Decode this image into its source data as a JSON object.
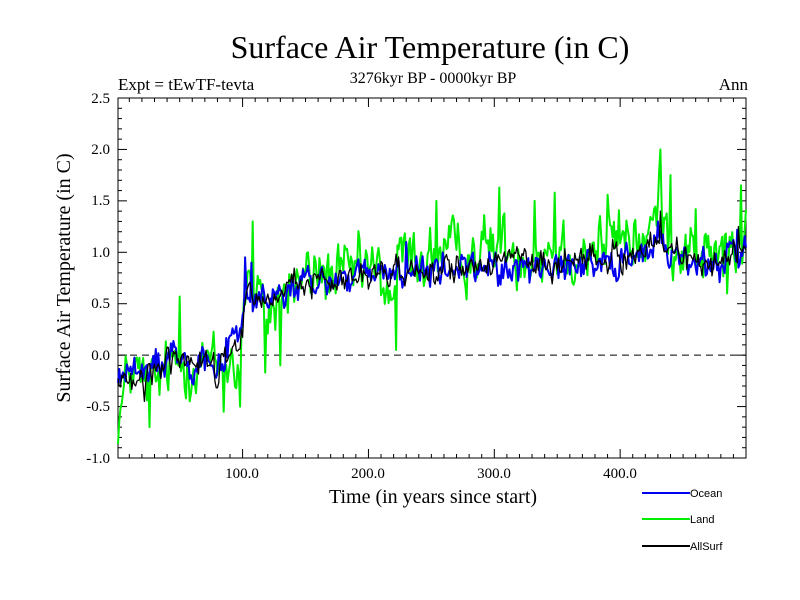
{
  "header": {
    "title": "Surface Air Temperature (in C)",
    "subtitle": "3276kyr BP - 0000kyr BP",
    "experiment": "Expt = tEwTF-tevta",
    "period": "Ann"
  },
  "chart_data": {
    "type": "line",
    "title": "Surface Air Temperature (in C)",
    "subtitle": "3276kyr BP - 0000kyr BP",
    "xlabel": "Time (in years since start)",
    "ylabel": "Surface Air Temperature (in C)",
    "xlim": [
      1,
      500
    ],
    "ylim": [
      -1.0,
      2.5
    ],
    "x_ticks": [
      100,
      200,
      300,
      400
    ],
    "x_tick_labels": [
      "100.0",
      "200.0",
      "300.0",
      "400.0"
    ],
    "y_ticks": [
      -1.0,
      -0.5,
      0.0,
      0.5,
      1.0,
      1.5,
      2.0,
      2.5
    ],
    "y_tick_labels": [
      "-1.0",
      "-0.5",
      "0.0",
      "0.5",
      "1.0",
      "1.5",
      "2.0",
      "2.5"
    ],
    "zero_line": {
      "value": 0.0,
      "style": "dashed"
    },
    "legend_placement": "bottom-right",
    "series": [
      {
        "name": "Land",
        "color": "#00ee00",
        "anchors_x": [
          1,
          5,
          10,
          20,
          30,
          40,
          50,
          60,
          70,
          80,
          90,
          95,
          100,
          103,
          108,
          115,
          120,
          140,
          160,
          180,
          200,
          210,
          218,
          225,
          250,
          280,
          300,
          330,
          350,
          370,
          400,
          420,
          432,
          440,
          460,
          480,
          490,
          500
        ],
        "anchors_y": [
          -0.6,
          -0.45,
          -0.1,
          -0.25,
          -0.3,
          -0.15,
          -0.1,
          -0.05,
          -0.05,
          -0.15,
          0.0,
          -0.2,
          0.3,
          0.75,
          0.6,
          0.45,
          0.4,
          0.7,
          0.8,
          0.75,
          0.85,
          0.75,
          0.55,
          0.95,
          0.95,
          1.0,
          1.05,
          1.0,
          1.05,
          1.0,
          1.15,
          1.1,
          1.45,
          1.1,
          1.0,
          0.95,
          1.05,
          1.05
        ],
        "noise": 0.26,
        "spikes": [
          [
            26,
            -0.7
          ],
          [
            50,
            0.57
          ],
          [
            85,
            -0.55
          ],
          [
            98,
            -0.5
          ],
          [
            108,
            1.3
          ],
          [
            118,
            -0.17
          ],
          [
            130,
            -0.1
          ],
          [
            222,
            0.05
          ],
          [
            254,
            1.5
          ],
          [
            304,
            1.63
          ],
          [
            332,
            1.5
          ],
          [
            348,
            1.58
          ],
          [
            390,
            1.56
          ],
          [
            432,
            2.0
          ],
          [
            440,
            1.75
          ],
          [
            460,
            1.42
          ],
          [
            485,
            0.6
          ],
          [
            496,
            1.65
          ]
        ]
      },
      {
        "name": "Ocean",
        "color": "#0000ee",
        "anchors_x": [
          1,
          10,
          20,
          30,
          40,
          50,
          60,
          70,
          80,
          90,
          95,
          100,
          103,
          108,
          115,
          120,
          140,
          160,
          180,
          200,
          220,
          250,
          280,
          300,
          330,
          350,
          370,
          400,
          420,
          432,
          440,
          460,
          480,
          490,
          500
        ],
        "anchors_y": [
          -0.25,
          -0.1,
          -0.25,
          -0.1,
          0.0,
          0.05,
          -0.05,
          0.0,
          -0.1,
          0.1,
          0.2,
          0.3,
          0.6,
          0.55,
          0.5,
          0.5,
          0.65,
          0.7,
          0.75,
          0.75,
          0.8,
          0.8,
          0.85,
          0.85,
          0.85,
          0.85,
          0.9,
          0.95,
          0.95,
          1.1,
          1.0,
          0.9,
          0.85,
          1.05,
          1.0
        ],
        "noise": 0.14,
        "spikes": [
          [
            102,
            0.95
          ],
          [
            107,
            0.9
          ],
          [
            230,
            1.1
          ],
          [
            430,
            1.3
          ],
          [
            493,
            1.22
          ]
        ]
      },
      {
        "name": "AllSurf",
        "color": "#000000",
        "anchors_x": [
          1,
          10,
          20,
          30,
          40,
          50,
          60,
          70,
          80,
          90,
          95,
          100,
          103,
          108,
          115,
          120,
          140,
          160,
          180,
          200,
          220,
          250,
          280,
          300,
          330,
          350,
          370,
          400,
          420,
          432,
          440,
          460,
          480,
          490,
          500
        ],
        "anchors_y": [
          -0.3,
          -0.15,
          -0.3,
          -0.15,
          -0.02,
          0.02,
          -0.05,
          -0.02,
          -0.15,
          0.05,
          0.1,
          0.3,
          0.65,
          0.57,
          0.5,
          0.5,
          0.68,
          0.72,
          0.76,
          0.77,
          0.82,
          0.83,
          0.88,
          0.88,
          0.88,
          0.88,
          0.92,
          0.98,
          0.98,
          1.15,
          1.03,
          0.92,
          0.87,
          1.05,
          1.0
        ],
        "noise": 0.12,
        "spikes": [
          [
            22,
            -0.45
          ],
          [
            432,
            1.4
          ],
          [
            494,
            1.25
          ]
        ]
      }
    ]
  }
}
